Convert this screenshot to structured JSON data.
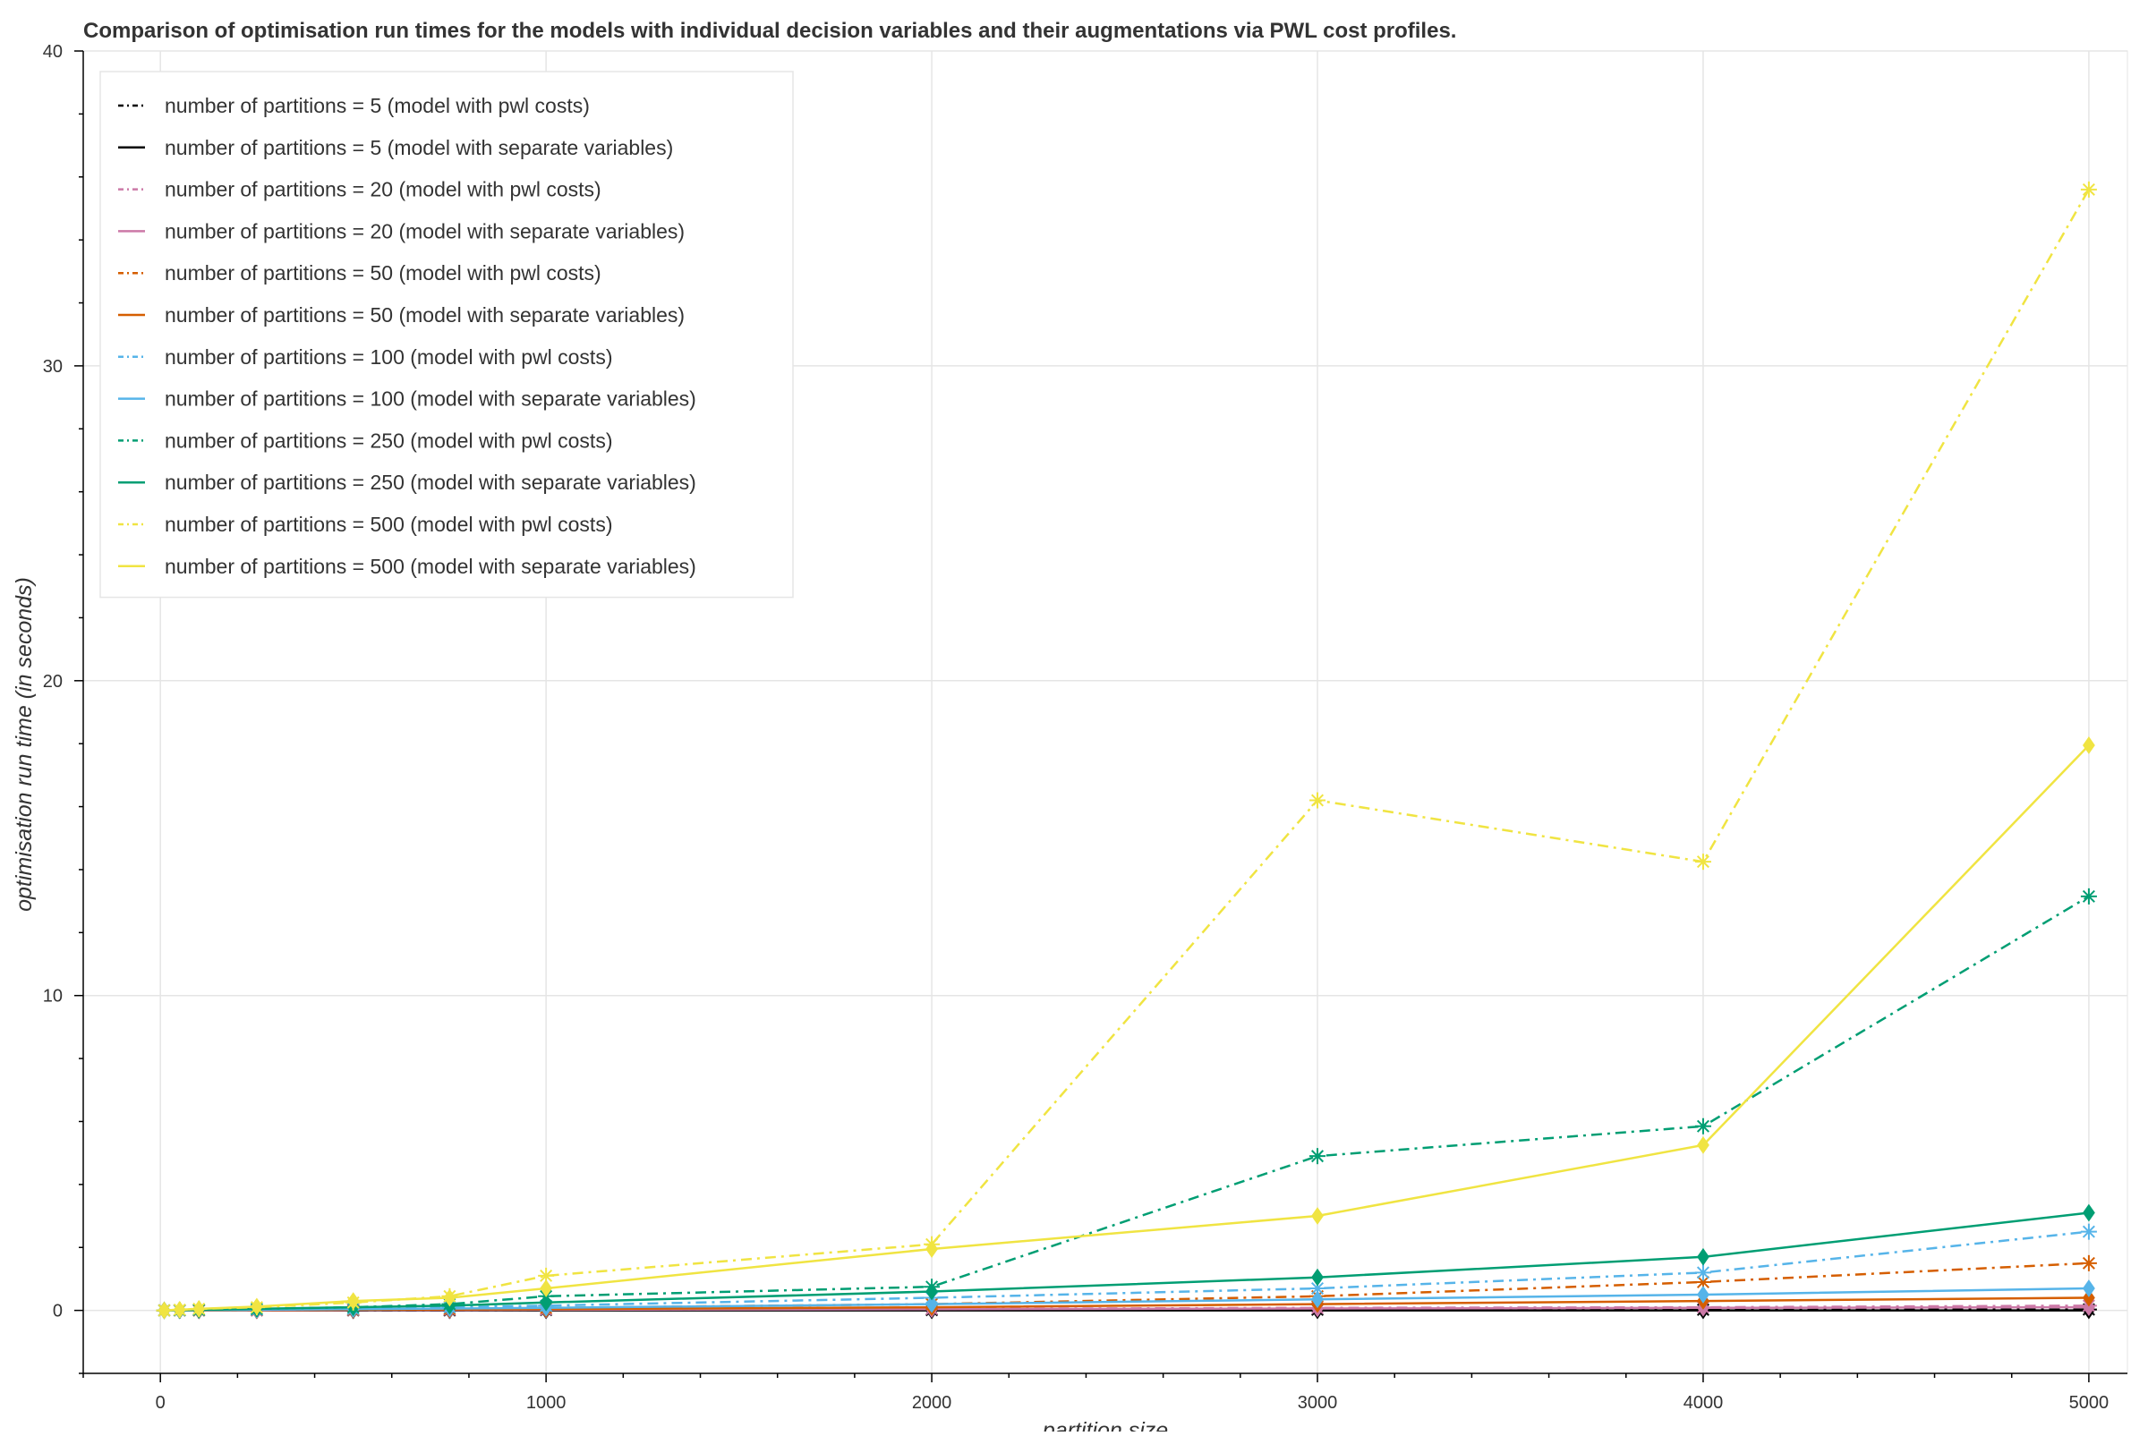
{
  "chart_data": {
    "type": "line",
    "title": "Comparison of optimisation run times for the models with individual decision variables and their augmentations via PWL cost profiles.",
    "xlabel": "partition size",
    "ylabel": "optimisation run time (in seconds)",
    "xlim": [
      -200,
      5100
    ],
    "ylim": [
      -2,
      40
    ],
    "x_ticks": [
      0,
      1000,
      2000,
      3000,
      4000,
      5000
    ],
    "y_ticks": [
      0,
      10,
      20,
      30,
      40
    ],
    "grid": true,
    "legend_position": "top-left",
    "x": [
      10,
      50,
      100,
      250,
      500,
      750,
      1000,
      2000,
      3000,
      4000,
      5000
    ],
    "series": [
      {
        "name": "number of partitions = 5 (model with pwl costs)",
        "color": "#000000",
        "dash": "dashdot",
        "marker": "asterisk",
        "values": [
          0,
          0,
          0,
          0,
          0,
          0,
          0.01,
          0.01,
          0.02,
          0.02,
          0.03
        ]
      },
      {
        "name": "number of partitions = 5 (model with separate variables)",
        "color": "#000000",
        "dash": "solid",
        "marker": "diamond",
        "values": [
          0,
          0,
          0,
          0,
          0,
          0,
          0,
          0,
          0,
          0,
          0
        ]
      },
      {
        "name": "number of partitions = 20 (model with pwl costs)",
        "color": "#cc79a7",
        "dash": "dashdot",
        "marker": "asterisk",
        "values": [
          0,
          0,
          0,
          0,
          0.01,
          0.02,
          0.03,
          0.05,
          0.08,
          0.1,
          0.15
        ]
      },
      {
        "name": "number of partitions = 20 (model with separate variables)",
        "color": "#cc79a7",
        "dash": "solid",
        "marker": "diamond",
        "values": [
          0,
          0,
          0,
          0,
          0.01,
          0.01,
          0.02,
          0.04,
          0.06,
          0.08,
          0.1
        ]
      },
      {
        "name": "number of partitions = 50 (model with pwl costs)",
        "color": "#d55e00",
        "dash": "dashdot",
        "marker": "asterisk",
        "values": [
          0,
          0,
          0,
          0.01,
          0.03,
          0.05,
          0.08,
          0.2,
          0.45,
          0.9,
          1.5
        ]
      },
      {
        "name": "number of partitions = 50 (model with separate variables)",
        "color": "#d55e00",
        "dash": "solid",
        "marker": "diamond",
        "values": [
          0,
          0,
          0,
          0.01,
          0.02,
          0.03,
          0.04,
          0.1,
          0.2,
          0.3,
          0.4
        ]
      },
      {
        "name": "number of partitions = 100 (model with pwl costs)",
        "color": "#56b4e9",
        "dash": "dashdot",
        "marker": "asterisk",
        "values": [
          0,
          0,
          0.01,
          0.02,
          0.05,
          0.1,
          0.15,
          0.4,
          0.7,
          1.2,
          2.5
        ]
      },
      {
        "name": "number of partitions = 100 (model with separate variables)",
        "color": "#56b4e9",
        "dash": "solid",
        "marker": "diamond",
        "values": [
          0,
          0,
          0.01,
          0.02,
          0.04,
          0.06,
          0.08,
          0.2,
          0.35,
          0.5,
          0.7
        ]
      },
      {
        "name": "number of partitions = 250 (model with pwl costs)",
        "color": "#009e73",
        "dash": "dashdot",
        "marker": "asterisk",
        "values": [
          0,
          0.01,
          0.02,
          0.05,
          0.1,
          0.2,
          0.45,
          0.75,
          4.9,
          5.85,
          13.15
        ]
      },
      {
        "name": "number of partitions = 250 (model with separate variables)",
        "color": "#009e73",
        "dash": "solid",
        "marker": "diamond",
        "values": [
          0,
          0.01,
          0.02,
          0.05,
          0.1,
          0.15,
          0.25,
          0.6,
          1.05,
          1.7,
          3.1
        ]
      },
      {
        "name": "number of partitions = 500 (model with pwl costs)",
        "color": "#f0e442",
        "dash": "dashdot",
        "marker": "asterisk",
        "values": [
          0,
          0.02,
          0.05,
          0.1,
          0.25,
          0.45,
          1.1,
          2.1,
          16.2,
          14.25,
          35.6
        ]
      },
      {
        "name": "number of partitions = 500 (model with separate variables)",
        "color": "#f0e442",
        "dash": "solid",
        "marker": "diamond",
        "values": [
          0,
          0.02,
          0.05,
          0.12,
          0.3,
          0.4,
          0.7,
          1.95,
          3.0,
          5.25,
          17.95
        ]
      }
    ]
  }
}
